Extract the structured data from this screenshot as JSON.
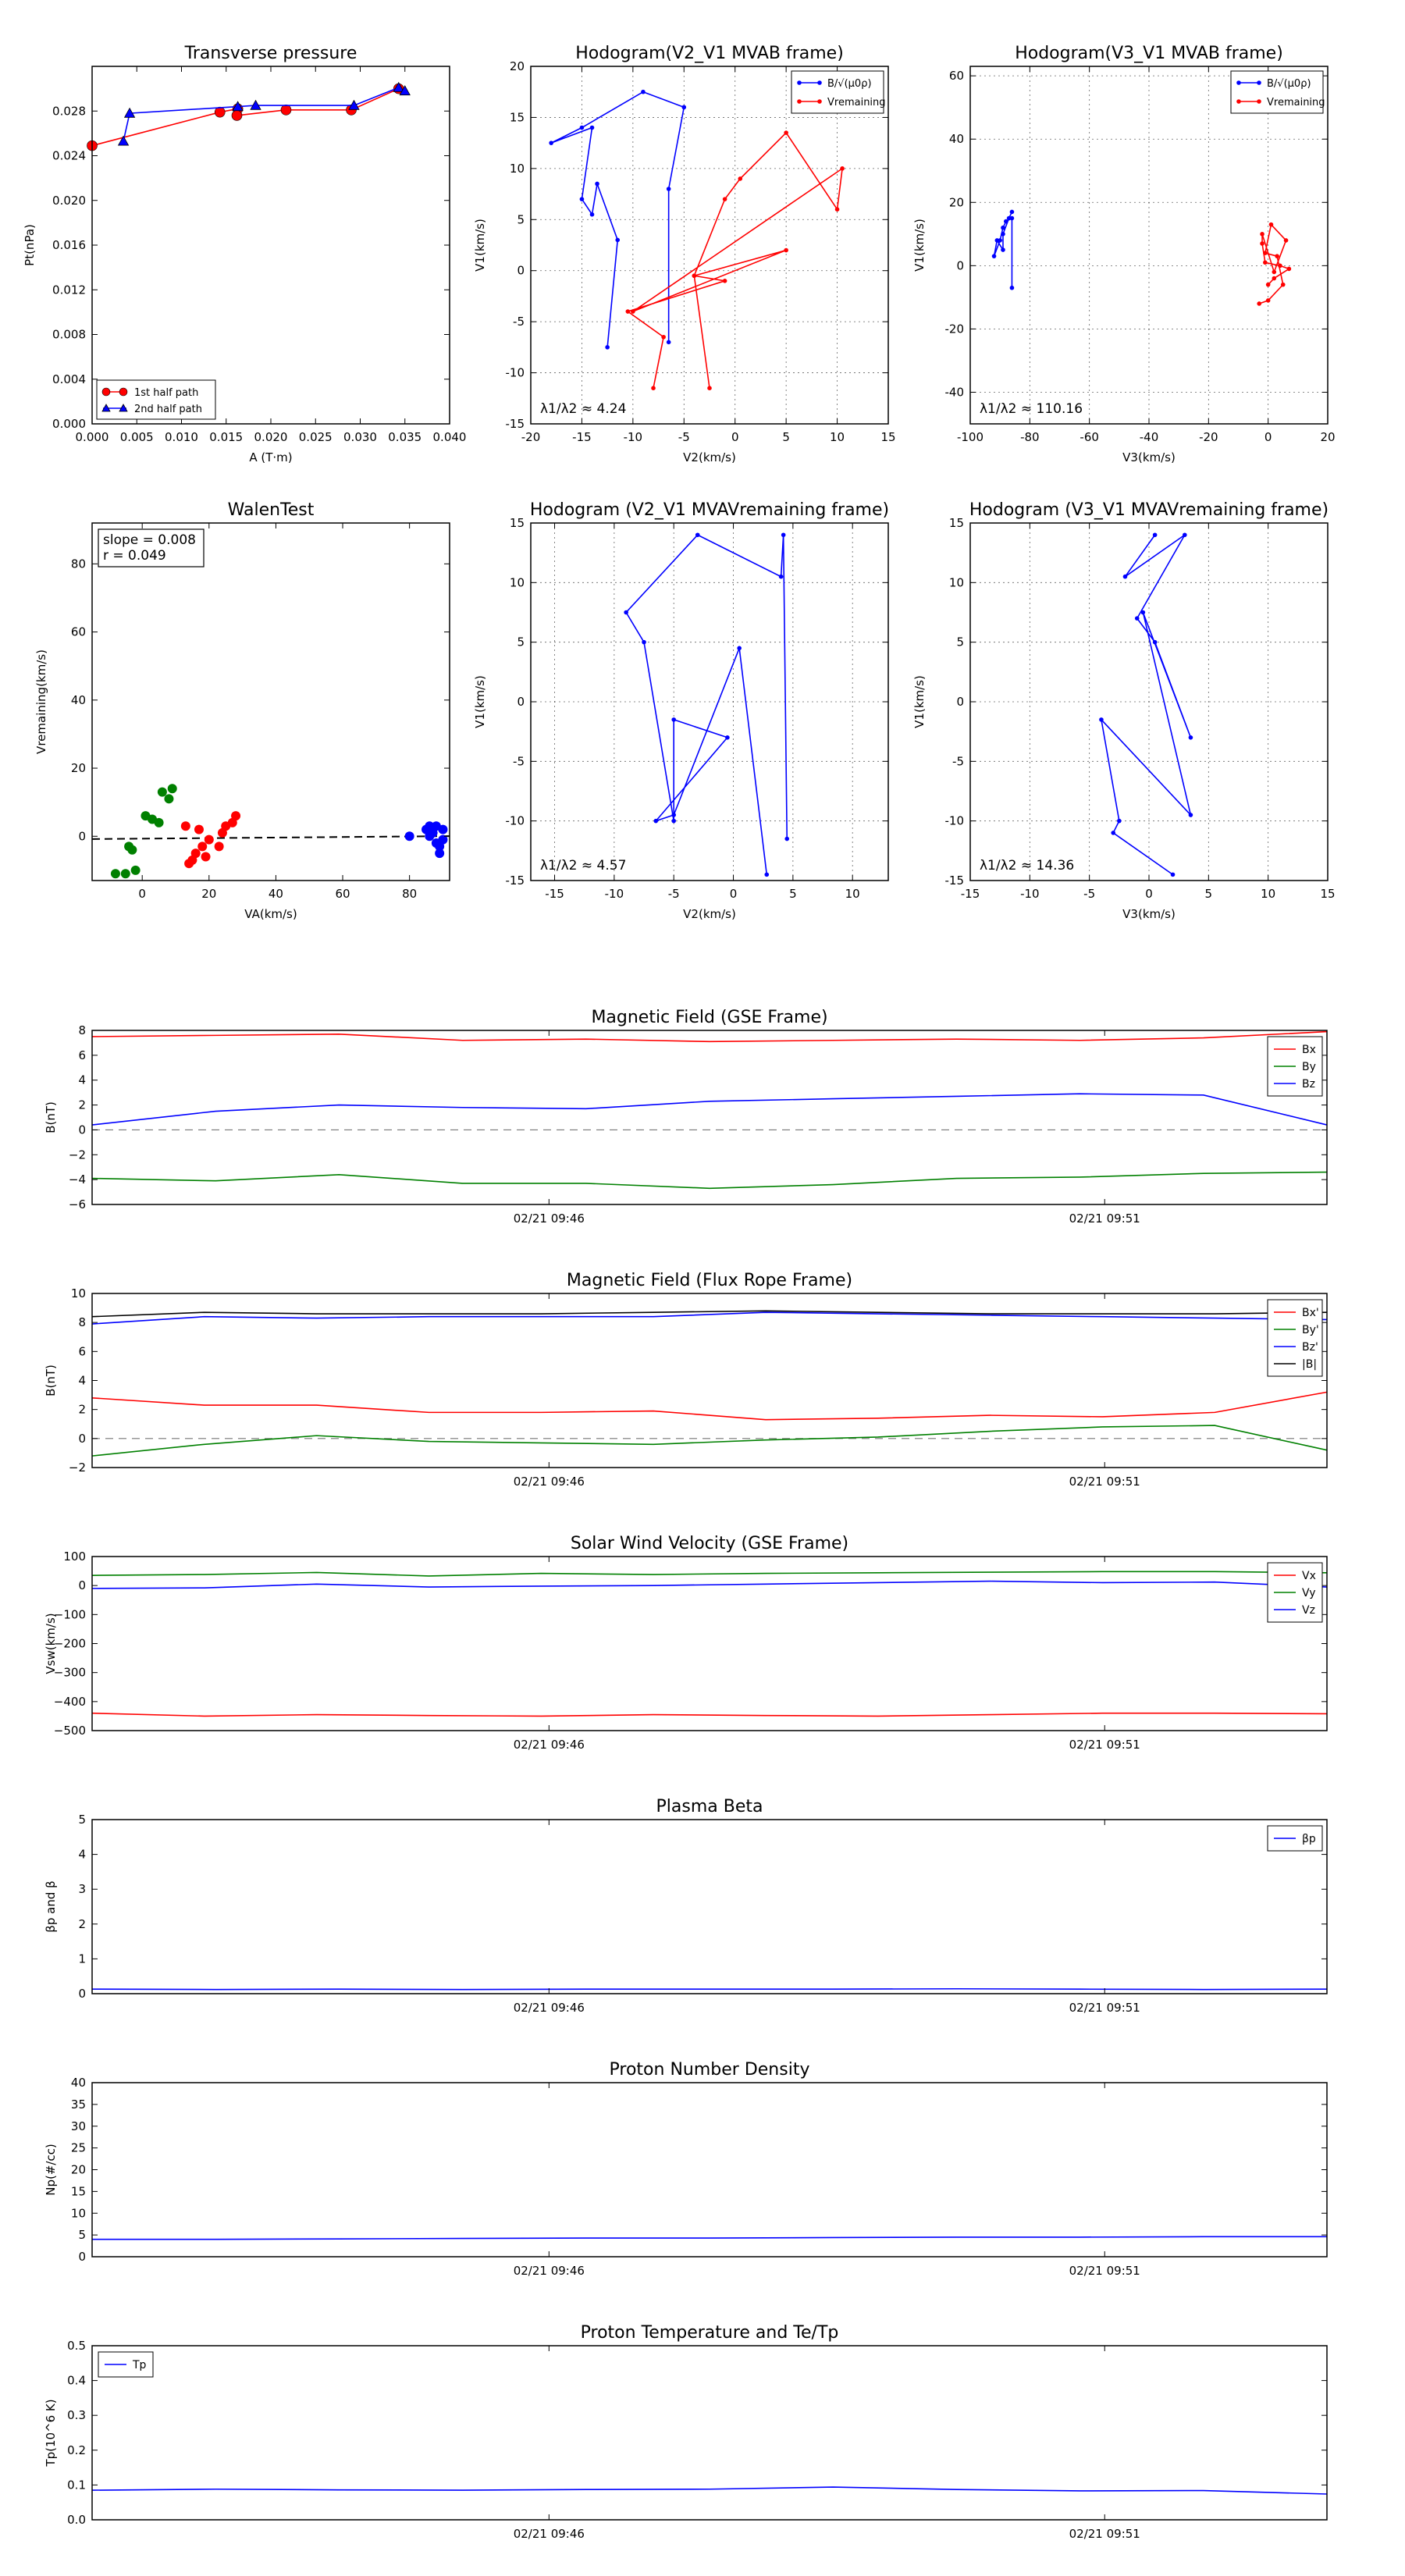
{
  "chart_data": [
    {
      "id": "tp",
      "type": "scatter",
      "title": "Transverse pressure",
      "xlabel": "A (T·m)",
      "ylabel": "Pt(nPa)",
      "xlim": [
        0.0,
        0.04
      ],
      "ylim": [
        0.0,
        0.032
      ],
      "xticks": [
        0.0,
        0.005,
        0.01,
        0.015,
        0.02,
        0.025,
        0.03,
        0.035,
        0.04
      ],
      "xtick_labels": [
        "0.000",
        "0.005",
        "0.010",
        "0.015",
        "0.020",
        "0.025",
        "0.030",
        "0.035",
        "0.040"
      ],
      "yticks": [
        0.0,
        0.004,
        0.008,
        0.012,
        0.016,
        0.02,
        0.024,
        0.028
      ],
      "ytick_labels": [
        "0.000",
        "0.004",
        "0.008",
        "0.012",
        "0.016",
        "0.020",
        "0.024",
        "0.028"
      ],
      "grid": false,
      "legend_position": "lower-left",
      "series": [
        {
          "name": "1st half path",
          "color": "#ff0000",
          "marker": "circle",
          "x": [
            0.0,
            0.0143,
            0.0163,
            0.0162,
            0.0217,
            0.029,
            0.0343
          ],
          "y": [
            0.0249,
            0.0279,
            0.0282,
            0.0276,
            0.0281,
            0.0281,
            0.03
          ]
        },
        {
          "name": "2nd half path",
          "color": "#0000ff",
          "marker": "triangle",
          "x": [
            0.0035,
            0.0042,
            0.0163,
            0.0183,
            0.0293,
            0.0343,
            0.035
          ],
          "y": [
            0.0253,
            0.0278,
            0.0284,
            0.0285,
            0.0285,
            0.0301,
            0.0298
          ]
        }
      ]
    },
    {
      "id": "h1",
      "type": "line",
      "title": "Hodogram(V2_V1 MVAB frame)",
      "xlabel": "V2(km/s)",
      "ylabel": "V1(km/s)",
      "xlim": [
        -20,
        15
      ],
      "ylim": [
        -15,
        20
      ],
      "xticks": [
        -20,
        -15,
        -10,
        -5,
        0,
        5,
        10,
        15
      ],
      "yticks": [
        -15,
        -10,
        -5,
        0,
        5,
        10,
        15,
        20
      ],
      "grid": true,
      "legend_position": "top-right",
      "annotation": "λ1/λ2 ≈ 4.24",
      "series": [
        {
          "name": "B/√(μ0ρ)",
          "color": "#0000ff",
          "x": [
            -12.5,
            -11.5,
            -13.5,
            -14,
            -15,
            -14,
            -18,
            -15,
            -9,
            -5,
            -6.5,
            -6.5
          ],
          "y": [
            -7.5,
            3,
            8.5,
            5.5,
            7,
            14,
            12.5,
            14,
            17.5,
            16,
            8,
            -7
          ]
        },
        {
          "name": "Vremaining",
          "color": "#ff0000",
          "x": [
            -8,
            -7,
            -10.5,
            -1,
            -4,
            5,
            -10,
            10.5,
            10,
            5,
            0.5,
            -1,
            -4,
            -2.5
          ],
          "y": [
            -11.5,
            -6.5,
            -4,
            -1,
            -0.5,
            2,
            -4,
            10,
            6,
            13.5,
            9,
            7,
            -0.5,
            -11.5
          ]
        }
      ]
    },
    {
      "id": "h2",
      "type": "line",
      "title": "Hodogram(V3_V1 MVAB frame)",
      "xlabel": "V3(km/s)",
      "ylabel": "V1(km/s)",
      "xlim": [
        -100,
        20
      ],
      "ylim": [
        -50,
        63
      ],
      "xticks": [
        -100,
        -80,
        -60,
        -40,
        -20,
        0,
        20
      ],
      "yticks": [
        -40,
        -20,
        0,
        20,
        40,
        60
      ],
      "grid": true,
      "legend_position": "top-right",
      "annotation": "λ1/λ2 ≈ 110.16",
      "series": [
        {
          "name": "B/√(μ0ρ)",
          "color": "#0000ff",
          "x": [
            -86,
            -86,
            -88,
            -89,
            -90,
            -92,
            -91,
            -89,
            -89,
            -87,
            -86
          ],
          "y": [
            -7,
            15,
            14,
            12,
            8,
            3,
            8,
            5,
            10,
            15,
            17
          ]
        },
        {
          "name": "Vremaining",
          "color": "#ff0000",
          "x": [
            -3,
            0,
            5,
            3,
            -1,
            1,
            6,
            2,
            -2,
            -2,
            -1,
            4,
            7,
            2,
            0
          ],
          "y": [
            -12,
            -11,
            -6,
            3,
            4,
            13,
            8,
            -2,
            10,
            7,
            1,
            0,
            -1,
            -4,
            -6
          ]
        }
      ]
    },
    {
      "id": "walen",
      "type": "scatter",
      "title": "WalenTest",
      "xlabel": "VA(km/s)",
      "ylabel": "Vremaining(km/s)",
      "xlim": [
        -15,
        92
      ],
      "ylim": [
        -13,
        92
      ],
      "xticks": [
        0,
        20,
        40,
        60,
        80
      ],
      "yticks": [
        0,
        20,
        40,
        60,
        80
      ],
      "grid": false,
      "annotation": [
        "slope = 0.008",
        "r = 0.049"
      ],
      "fit_line": {
        "slope": 0.008,
        "intercept": -0.7,
        "color": "#000000",
        "style": "dashed"
      },
      "series": [
        {
          "color": "#008000",
          "x": [
            -8,
            -5,
            -2,
            -3,
            -4,
            1,
            3,
            5,
            6,
            8,
            9
          ],
          "y": [
            -11,
            -11,
            -10,
            -4,
            -3,
            6,
            5,
            4,
            13,
            11,
            14
          ]
        },
        {
          "color": "#ff0000",
          "x": [
            13,
            14,
            15,
            16,
            17,
            18,
            19,
            20,
            23,
            24,
            25,
            27,
            28
          ],
          "y": [
            3,
            -8,
            -7,
            -5,
            2,
            -3,
            -6,
            -1,
            -3,
            1,
            3,
            4,
            6
          ]
        },
        {
          "color": "#0000ff",
          "x": [
            80,
            85,
            86,
            86,
            87,
            88,
            88,
            89,
            90,
            89,
            90
          ],
          "y": [
            0,
            2,
            3,
            0,
            1,
            -2,
            3,
            -5,
            2,
            -3,
            -1
          ]
        }
      ]
    },
    {
      "id": "h3",
      "type": "line",
      "title": "Hodogram (V2_V1 MVAVremaining frame)",
      "xlabel": "V2(km/s)",
      "ylabel": "V1(km/s)",
      "xlim": [
        -17,
        13
      ],
      "ylim": [
        -15,
        15
      ],
      "xticks": [
        -15,
        -10,
        -5,
        0,
        5,
        10
      ],
      "yticks": [
        -15,
        -10,
        -5,
        0,
        5,
        10,
        15
      ],
      "grid": true,
      "annotation": "λ1/λ2 ≈ 4.57",
      "series": [
        {
          "color": "#0000ff",
          "x": [
            2.8,
            0.5,
            -5,
            -6.5,
            -0.5,
            -5,
            -5,
            -7.5,
            -9,
            -3,
            4,
            4.2,
            4.5
          ],
          "y": [
            -14.5,
            4.5,
            -9.5,
            -10,
            -3,
            -1.5,
            -10,
            5,
            7.5,
            14,
            10.5,
            14,
            -11.5
          ]
        }
      ]
    },
    {
      "id": "h4",
      "type": "line",
      "title": "Hodogram (V3_V1 MVAVremaining frame)",
      "xlabel": "V3(km/s)",
      "ylabel": "V1(km/s)",
      "xlim": [
        -15,
        15
      ],
      "ylim": [
        -15,
        15
      ],
      "xticks": [
        -15,
        -10,
        -5,
        0,
        5,
        10,
        15
      ],
      "yticks": [
        -15,
        -10,
        -5,
        0,
        5,
        10,
        15
      ],
      "grid": true,
      "annotation": "λ1/λ2 ≈ 14.36",
      "series": [
        {
          "color": "#0000ff",
          "x": [
            2,
            -3,
            -2.5,
            -4,
            3.5,
            -0.5,
            3.5,
            0.5,
            -1,
            3,
            -2,
            0.5
          ],
          "y": [
            -14.5,
            -11,
            -10,
            -1.5,
            -9.5,
            7.5,
            -3,
            5,
            7,
            14,
            10.5,
            14
          ]
        }
      ]
    },
    {
      "id": "bgse",
      "type": "line",
      "title": "Magnetic Field (GSE Frame)",
      "ylabel": "B(nT)",
      "ylim": [
        -6,
        8
      ],
      "yticks": [
        -6,
        -4,
        -2,
        0,
        2,
        4,
        6,
        8
      ],
      "xtick_labels": [
        "02/21 09:46",
        "02/21 09:51"
      ],
      "xtick_positions": [
        0.37,
        0.82
      ],
      "zero_line": true,
      "legend_position": "top-right",
      "series": [
        {
          "name": "Bx",
          "color": "#ff0000",
          "values": [
            7.5,
            7.6,
            7.7,
            7.2,
            7.3,
            7.1,
            7.2,
            7.3,
            7.2,
            7.4,
            7.9
          ]
        },
        {
          "name": "By",
          "color": "#008000",
          "values": [
            -3.9,
            -4.1,
            -3.6,
            -4.3,
            -4.3,
            -4.7,
            -4.4,
            -3.9,
            -3.8,
            -3.5,
            -3.4
          ]
        },
        {
          "name": "Bz",
          "color": "#0000ff",
          "values": [
            0.4,
            1.5,
            2.0,
            1.8,
            1.7,
            2.3,
            2.5,
            2.7,
            2.9,
            2.8,
            0.4
          ]
        }
      ]
    },
    {
      "id": "bfr",
      "type": "line",
      "title": "Magnetic Field (Flux Rope Frame)",
      "ylabel": "B(nT)",
      "ylim": [
        -2,
        10
      ],
      "yticks": [
        -2,
        0,
        2,
        4,
        6,
        8,
        10
      ],
      "xtick_labels": [
        "02/21 09:46",
        "02/21 09:51"
      ],
      "xtick_positions": [
        0.37,
        0.82
      ],
      "zero_line": true,
      "legend_position": "top-right",
      "series": [
        {
          "name": "Bx'",
          "color": "#ff0000",
          "values": [
            2.8,
            2.3,
            2.3,
            1.8,
            1.8,
            1.9,
            1.3,
            1.4,
            1.6,
            1.5,
            1.8,
            3.2
          ]
        },
        {
          "name": "By'",
          "color": "#008000",
          "values": [
            -1.2,
            -0.4,
            0.2,
            -0.2,
            -0.3,
            -0.4,
            -0.1,
            0.1,
            0.5,
            0.8,
            0.9,
            -0.8
          ]
        },
        {
          "name": "Bz'",
          "color": "#0000ff",
          "values": [
            7.9,
            8.4,
            8.3,
            8.4,
            8.4,
            8.4,
            8.7,
            8.6,
            8.5,
            8.4,
            8.3,
            8.2
          ]
        },
        {
          "name": "|B|",
          "color": "#000000",
          "values": [
            8.4,
            8.7,
            8.6,
            8.6,
            8.6,
            8.7,
            8.8,
            8.7,
            8.6,
            8.6,
            8.6,
            8.7
          ]
        }
      ]
    },
    {
      "id": "vsw",
      "type": "line",
      "title": "Solar Wind Velocity (GSE Frame)",
      "ylabel": "Vsw(km/s)",
      "ylim": [
        -500,
        100
      ],
      "yticks": [
        -500,
        -400,
        -300,
        -200,
        -100,
        0,
        100
      ],
      "xtick_labels": [
        "02/21 09:46",
        "02/21 09:51"
      ],
      "xtick_positions": [
        0.37,
        0.82
      ],
      "legend_position": "top-right",
      "series": [
        {
          "name": "Vx",
          "color": "#ff0000",
          "values": [
            -440,
            -450,
            -445,
            -448,
            -450,
            -445,
            -448,
            -450,
            -445,
            -440,
            -440,
            -442
          ]
        },
        {
          "name": "Vy",
          "color": "#008000",
          "values": [
            35,
            38,
            45,
            33,
            42,
            38,
            42,
            44,
            46,
            48,
            48,
            44
          ]
        },
        {
          "name": "Vz",
          "color": "#0000ff",
          "values": [
            -10,
            -8,
            5,
            -5,
            -2,
            0,
            5,
            10,
            15,
            10,
            12,
            -5
          ]
        }
      ]
    },
    {
      "id": "beta",
      "type": "line",
      "title": "Plasma Beta",
      "ylabel": "βp and β",
      "ylim": [
        0,
        5
      ],
      "yticks": [
        0,
        1,
        2,
        3,
        4,
        5
      ],
      "xtick_labels": [
        "02/21 09:46",
        "02/21 09:51"
      ],
      "xtick_positions": [
        0.37,
        0.82
      ],
      "legend_position": "top-right",
      "series": [
        {
          "name": "βp",
          "color": "#0000ff",
          "values": [
            0.13,
            0.12,
            0.13,
            0.12,
            0.13,
            0.13,
            0.13,
            0.14,
            0.13,
            0.12,
            0.13
          ]
        }
      ]
    },
    {
      "id": "np",
      "type": "line",
      "title": "Proton Number Density",
      "ylabel": "Np(#/cc)",
      "ylim": [
        0,
        40
      ],
      "yticks": [
        0,
        5,
        10,
        15,
        20,
        25,
        30,
        35,
        40
      ],
      "xtick_labels": [
        "02/21 09:46",
        "02/21 09:51"
      ],
      "xtick_positions": [
        0.37,
        0.82
      ],
      "series": [
        {
          "color": "#0000ff",
          "values": [
            4.0,
            4.0,
            4.1,
            4.2,
            4.3,
            4.3,
            4.4,
            4.5,
            4.5,
            4.6,
            4.6
          ]
        }
      ]
    },
    {
      "id": "tpr",
      "type": "line",
      "title": "Proton Temperature and Te/Tp",
      "ylabel": "Tp(10^6 K)",
      "ylim": [
        0,
        0.5
      ],
      "yticks": [
        0.0,
        0.1,
        0.2,
        0.3,
        0.4,
        0.5
      ],
      "ytick_labels": [
        "0.0",
        "0.1",
        "0.2",
        "0.3",
        "0.4",
        "0.5"
      ],
      "xtick_labels": [
        "02/21 09:46",
        "02/21 09:51"
      ],
      "xtick_positions": [
        0.37,
        0.82
      ],
      "legend_position": "top-left",
      "series": [
        {
          "name": "Tp",
          "color": "#0000ff",
          "values": [
            0.085,
            0.088,
            0.086,
            0.085,
            0.087,
            0.088,
            0.094,
            0.087,
            0.083,
            0.084,
            0.074
          ]
        }
      ]
    }
  ]
}
